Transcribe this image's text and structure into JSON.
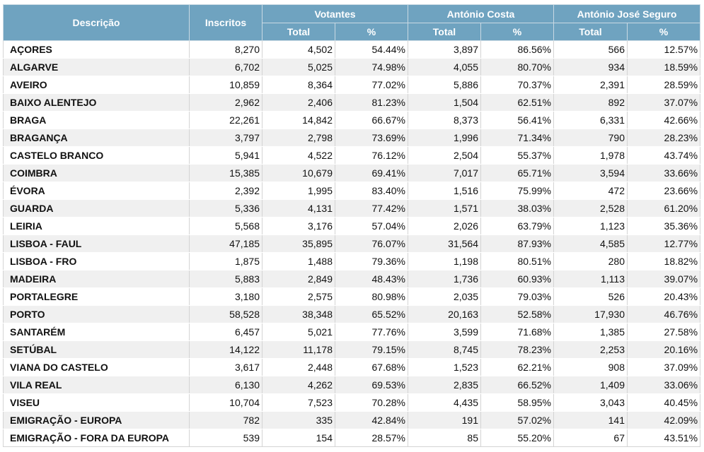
{
  "headers": {
    "descricao": "Descrição",
    "inscritos": "Inscritos",
    "votantes": "Votantes",
    "costa": "António Costa",
    "seguro": "António José Seguro",
    "total": "Total",
    "pct": "%"
  },
  "rows": [
    [
      "AÇORES",
      "8,270",
      "4,502",
      "54.44%",
      "3,897",
      "86.56%",
      "566",
      "12.57%"
    ],
    [
      "ALGARVE",
      "6,702",
      "5,025",
      "74.98%",
      "4,055",
      "80.70%",
      "934",
      "18.59%"
    ],
    [
      "AVEIRO",
      "10,859",
      "8,364",
      "77.02%",
      "5,886",
      "70.37%",
      "2,391",
      "28.59%"
    ],
    [
      "BAIXO ALENTEJO",
      "2,962",
      "2,406",
      "81.23%",
      "1,504",
      "62.51%",
      "892",
      "37.07%"
    ],
    [
      "BRAGA",
      "22,261",
      "14,842",
      "66.67%",
      "8,373",
      "56.41%",
      "6,331",
      "42.66%"
    ],
    [
      "BRAGANÇA",
      "3,797",
      "2,798",
      "73.69%",
      "1,996",
      "71.34%",
      "790",
      "28.23%"
    ],
    [
      "CASTELO BRANCO",
      "5,941",
      "4,522",
      "76.12%",
      "2,504",
      "55.37%",
      "1,978",
      "43.74%"
    ],
    [
      "COIMBRA",
      "15,385",
      "10,679",
      "69.41%",
      "7,017",
      "65.71%",
      "3,594",
      "33.66%"
    ],
    [
      "ÉVORA",
      "2,392",
      "1,995",
      "83.40%",
      "1,516",
      "75.99%",
      "472",
      "23.66%"
    ],
    [
      "GUARDA",
      "5,336",
      "4,131",
      "77.42%",
      "1,571",
      "38.03%",
      "2,528",
      "61.20%"
    ],
    [
      "LEIRIA",
      "5,568",
      "3,176",
      "57.04%",
      "2,026",
      "63.79%",
      "1,123",
      "35.36%"
    ],
    [
      "LISBOA - FAUL",
      "47,185",
      "35,895",
      "76.07%",
      "31,564",
      "87.93%",
      "4,585",
      "12.77%"
    ],
    [
      "LISBOA - FRO",
      "1,875",
      "1,488",
      "79.36%",
      "1,198",
      "80.51%",
      "280",
      "18.82%"
    ],
    [
      "MADEIRA",
      "5,883",
      "2,849",
      "48.43%",
      "1,736",
      "60.93%",
      "1,113",
      "39.07%"
    ],
    [
      "PORTALEGRE",
      "3,180",
      "2,575",
      "80.98%",
      "2,035",
      "79.03%",
      "526",
      "20.43%"
    ],
    [
      "PORTO",
      "58,528",
      "38,348",
      "65.52%",
      "20,163",
      "52.58%",
      "17,930",
      "46.76%"
    ],
    [
      "SANTARÉM",
      "6,457",
      "5,021",
      "77.76%",
      "3,599",
      "71.68%",
      "1,385",
      "27.58%"
    ],
    [
      "SETÚBAL",
      "14,122",
      "11,178",
      "79.15%",
      "8,745",
      "78.23%",
      "2,253",
      "20.16%"
    ],
    [
      "VIANA DO CASTELO",
      "3,617",
      "2,448",
      "67.68%",
      "1,523",
      "62.21%",
      "908",
      "37.09%"
    ],
    [
      "VILA REAL",
      "6,130",
      "4,262",
      "69.53%",
      "2,835",
      "66.52%",
      "1,409",
      "33.06%"
    ],
    [
      "VISEU",
      "10,704",
      "7,523",
      "70.28%",
      "4,435",
      "58.95%",
      "3,043",
      "40.45%"
    ],
    [
      "EMIGRAÇÃO - EUROPA",
      "782",
      "335",
      "42.84%",
      "191",
      "57.02%",
      "141",
      "42.09%"
    ],
    [
      "EMIGRAÇÃO - FORA DA EUROPA",
      "539",
      "154",
      "28.57%",
      "85",
      "55.20%",
      "67",
      "43.51%"
    ]
  ]
}
